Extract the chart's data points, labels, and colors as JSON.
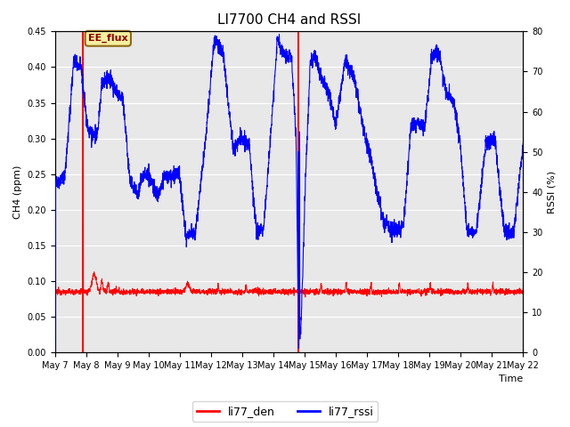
{
  "title": "LI7700 CH4 and RSSI",
  "xlabel": "Time",
  "ylabel_left": "CH4 (ppm)",
  "ylabel_right": "RSSI (%)",
  "ylim_left": [
    0.0,
    0.45
  ],
  "ylim_right": [
    0,
    80
  ],
  "yticks_left": [
    0.0,
    0.05,
    0.1,
    0.15,
    0.2,
    0.25,
    0.3,
    0.35,
    0.4,
    0.45
  ],
  "yticks_right": [
    0,
    10,
    20,
    30,
    40,
    50,
    60,
    70,
    80
  ],
  "background_color": "#ffffff",
  "plot_bg_color": "#e8e8e8",
  "grid_color": "#ffffff",
  "title_fontsize": 11,
  "annotation_text": "EE_flux",
  "annotation_color": "#8B6914",
  "annotation_bg": "#f5f0a0",
  "legend_entries": [
    "li77_den",
    "li77_rssi"
  ],
  "legend_colors": [
    "#ff0000",
    "#0000ff"
  ],
  "ch4_color": "#ff0000",
  "rssi_color": "#0000ff",
  "rssi_keypoints_t": [
    0,
    0.02,
    0.04,
    0.055,
    0.07,
    0.09,
    0.1,
    0.115,
    0.13,
    0.145,
    0.16,
    0.175,
    0.19,
    0.205,
    0.22,
    0.235,
    0.25,
    0.265,
    0.28,
    0.3,
    0.32,
    0.34,
    0.36,
    0.38,
    0.4,
    0.415,
    0.43,
    0.445,
    0.46,
    0.475,
    0.49,
    0.505,
    0.515,
    0.52,
    0.525,
    0.535,
    0.545,
    0.555,
    0.57,
    0.585,
    0.6,
    0.62,
    0.64,
    0.66,
    0.68,
    0.7,
    0.715,
    0.73,
    0.745,
    0.76,
    0.775,
    0.79,
    0.805,
    0.82,
    0.835,
    0.85,
    0.865,
    0.88,
    0.9,
    0.92,
    0.94,
    0.96,
    0.98,
    1.0
  ],
  "rssi_keypoints_v": [
    42,
    43,
    73,
    71,
    55,
    54,
    67,
    69,
    65,
    63,
    43,
    39,
    45,
    43,
    39,
    44,
    44,
    45,
    29,
    30,
    51,
    78,
    74,
    51,
    53,
    52,
    30,
    30,
    53,
    78,
    74,
    74,
    53,
    5,
    5,
    43,
    72,
    74,
    68,
    65,
    57,
    73,
    68,
    55,
    45,
    33,
    31,
    30,
    32,
    56,
    57,
    56,
    74,
    75,
    65,
    63,
    53,
    30,
    30,
    52,
    53,
    30,
    30,
    52
  ],
  "vline1_day": 0.9,
  "vline2_day": 7.8,
  "n_days": 15
}
